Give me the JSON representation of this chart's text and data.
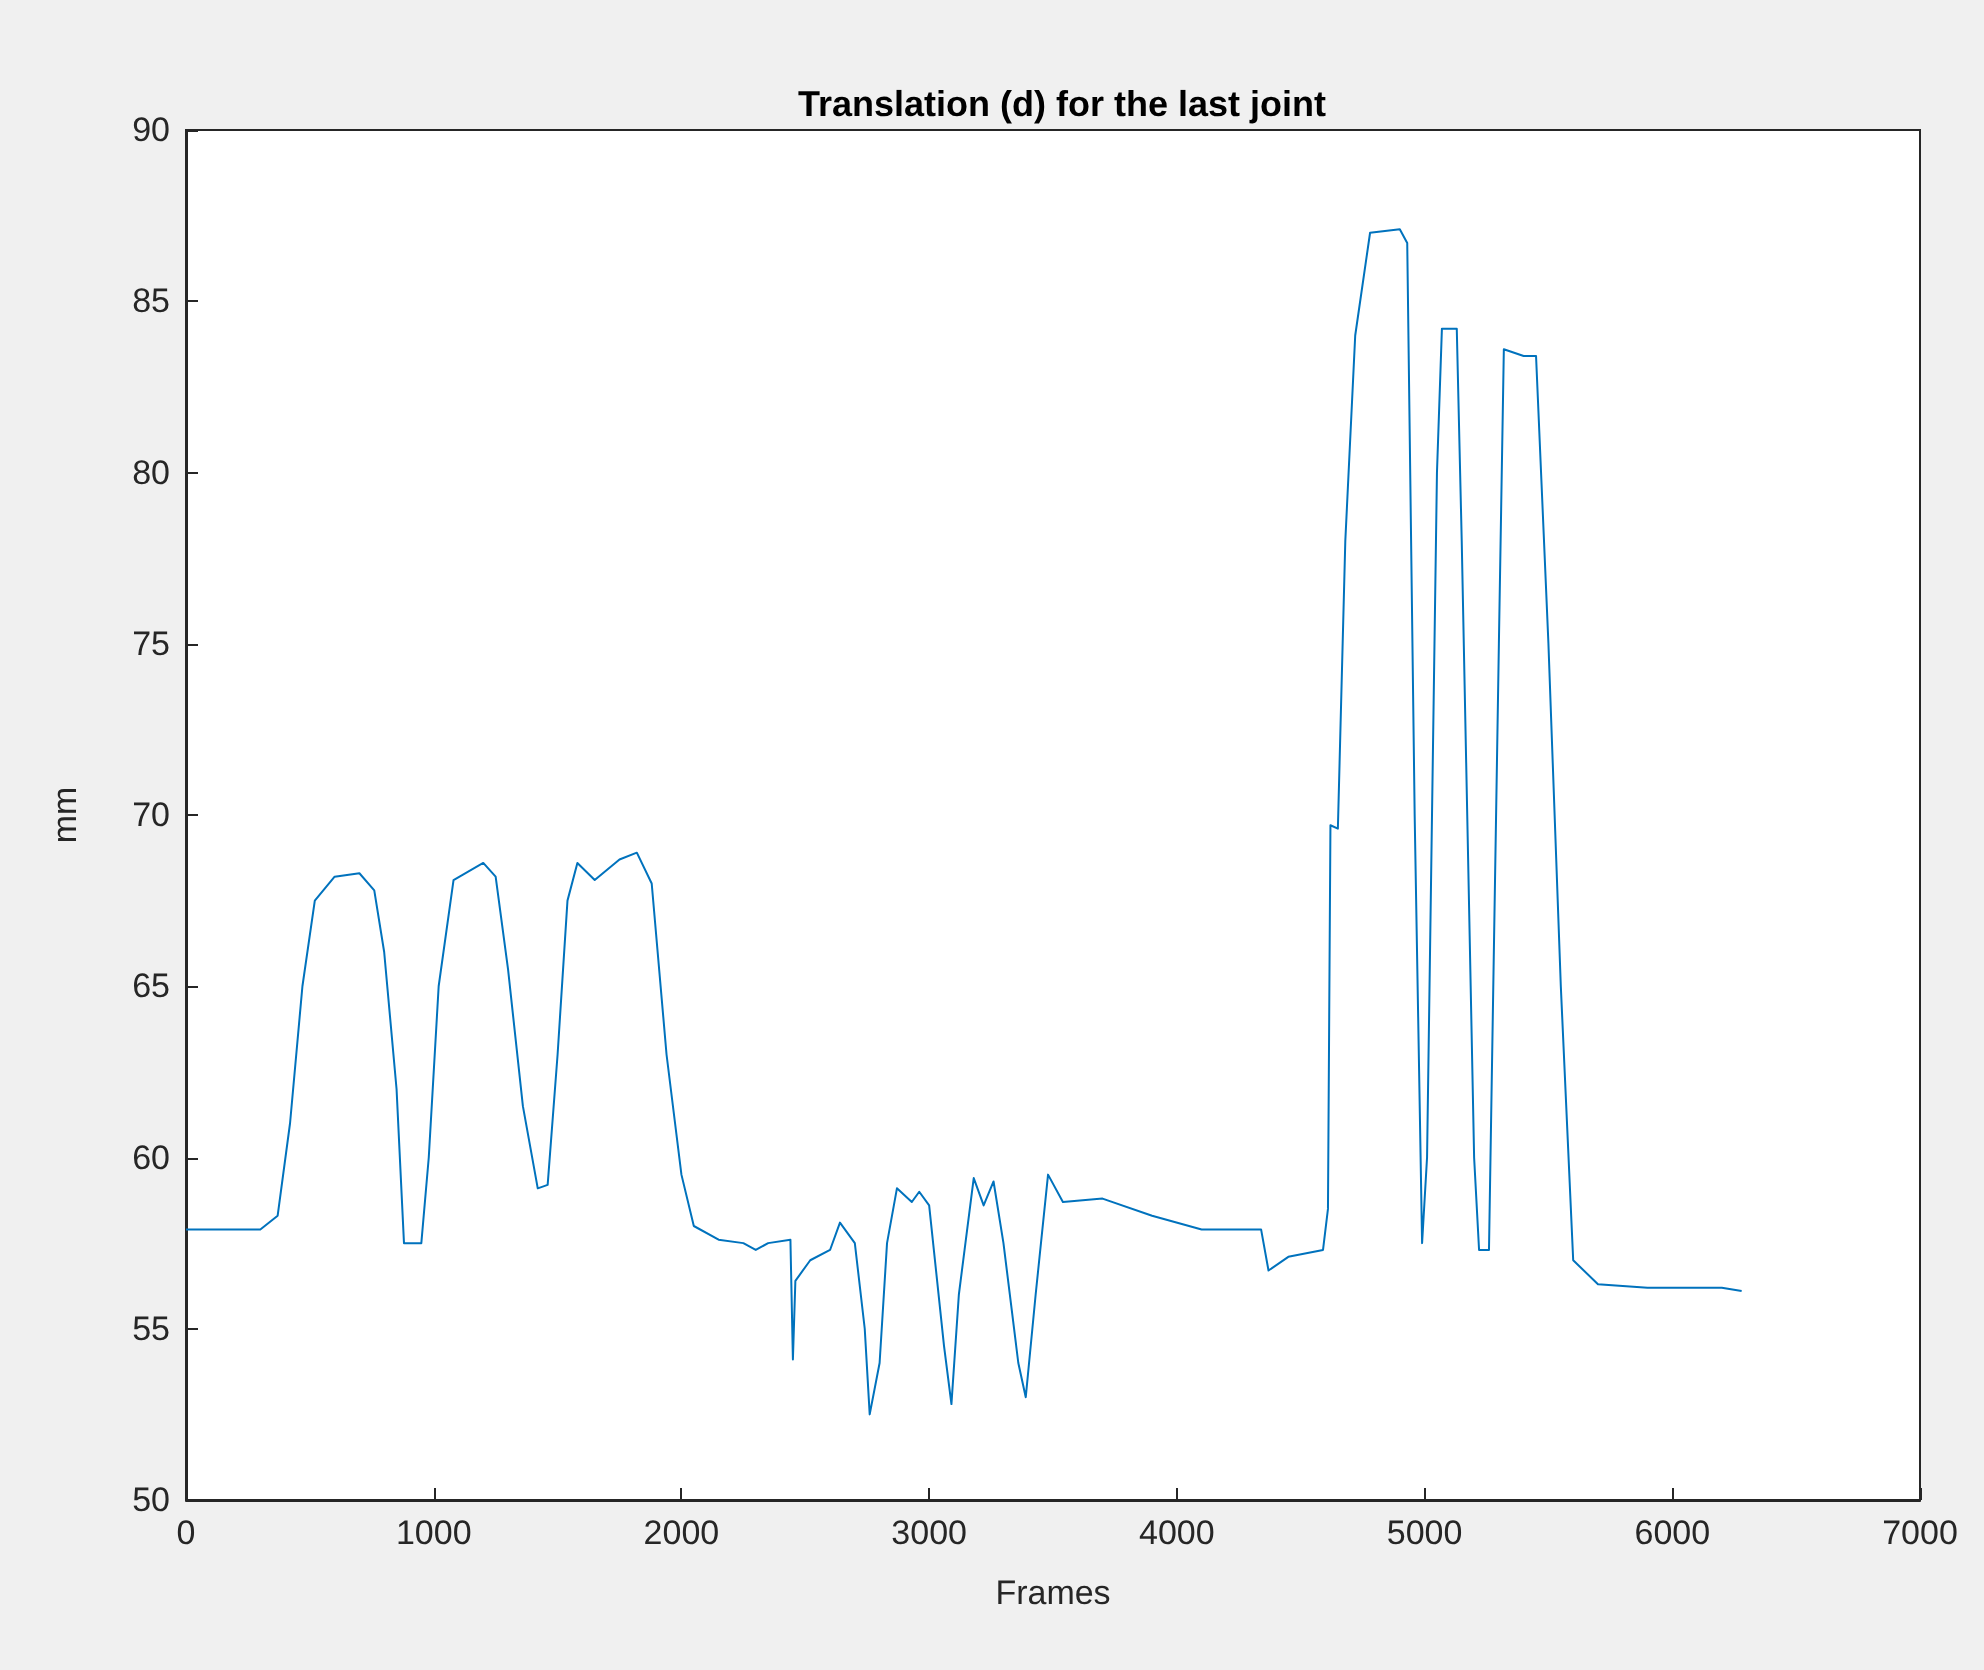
{
  "chart_data": {
    "type": "line",
    "title": "Translation (d) for the last joint",
    "xlabel": "Frames",
    "ylabel": "mm",
    "x": [
      0,
      300,
      370,
      420,
      470,
      520,
      600,
      700,
      760,
      800,
      850,
      880,
      950,
      980,
      1020,
      1080,
      1200,
      1250,
      1300,
      1360,
      1420,
      1460,
      1500,
      1540,
      1580,
      1650,
      1750,
      1820,
      1880,
      1940,
      2000,
      2050,
      2150,
      2250,
      2300,
      2350,
      2440,
      2450,
      2460,
      2520,
      2600,
      2640,
      2700,
      2740,
      2760,
      2800,
      2830,
      2870,
      2930,
      2960,
      3000,
      3060,
      3090,
      3120,
      3180,
      3220,
      3260,
      3300,
      3360,
      3390,
      3430,
      3480,
      3540,
      3700,
      3900,
      4100,
      4340,
      4370,
      4450,
      4590,
      4610,
      4620,
      4650,
      4680,
      4720,
      4780,
      4900,
      4930,
      4960,
      4990,
      5010,
      5050,
      5070,
      5130,
      5150,
      5200,
      5220,
      5260,
      5300,
      5320,
      5400,
      5450,
      5500,
      5550,
      5600,
      5700,
      5900,
      6100,
      6200,
      6280
    ],
    "series": [
      {
        "color": "#0072bd",
        "values": [
          57.9,
          57.9,
          58.3,
          61,
          65,
          67.5,
          68.2,
          68.3,
          67.8,
          66,
          62,
          57.5,
          57.5,
          60,
          65,
          68.1,
          68.6,
          68.2,
          65.5,
          61.5,
          59.1,
          59.2,
          63,
          67.5,
          68.6,
          68.1,
          68.7,
          68.9,
          68,
          63,
          59.5,
          58,
          57.6,
          57.5,
          57.3,
          57.5,
          57.6,
          54.1,
          56.4,
          57,
          57.3,
          58.1,
          57.5,
          55,
          52.5,
          54,
          57.5,
          59.1,
          58.7,
          59,
          58.6,
          54.5,
          52.8,
          56,
          59.4,
          58.6,
          59.3,
          57.5,
          54,
          53,
          56,
          59.5,
          58.7,
          58.8,
          58.3,
          57.9,
          57.9,
          56.7,
          57.1,
          57.3,
          58.5,
          69.7,
          69.6,
          78,
          84,
          87,
          87.1,
          86.7,
          70,
          57.5,
          60,
          80,
          84.2,
          84.2,
          78,
          60,
          57.3,
          57.3,
          75,
          83.6,
          83.4,
          83.4,
          75,
          65,
          57,
          56.3,
          56.2,
          56.2,
          56.2,
          56.1
        ]
      }
    ],
    "xlim": [
      0,
      7000
    ],
    "xticks": [
      0,
      1000,
      2000,
      3000,
      4000,
      5000,
      6000,
      7000
    ],
    "ylim": [
      50,
      90
    ],
    "yticks": [
      50,
      55,
      60,
      65,
      70,
      75,
      80,
      85,
      90
    ],
    "grid": false,
    "marker": "none",
    "line_style": "solid"
  }
}
